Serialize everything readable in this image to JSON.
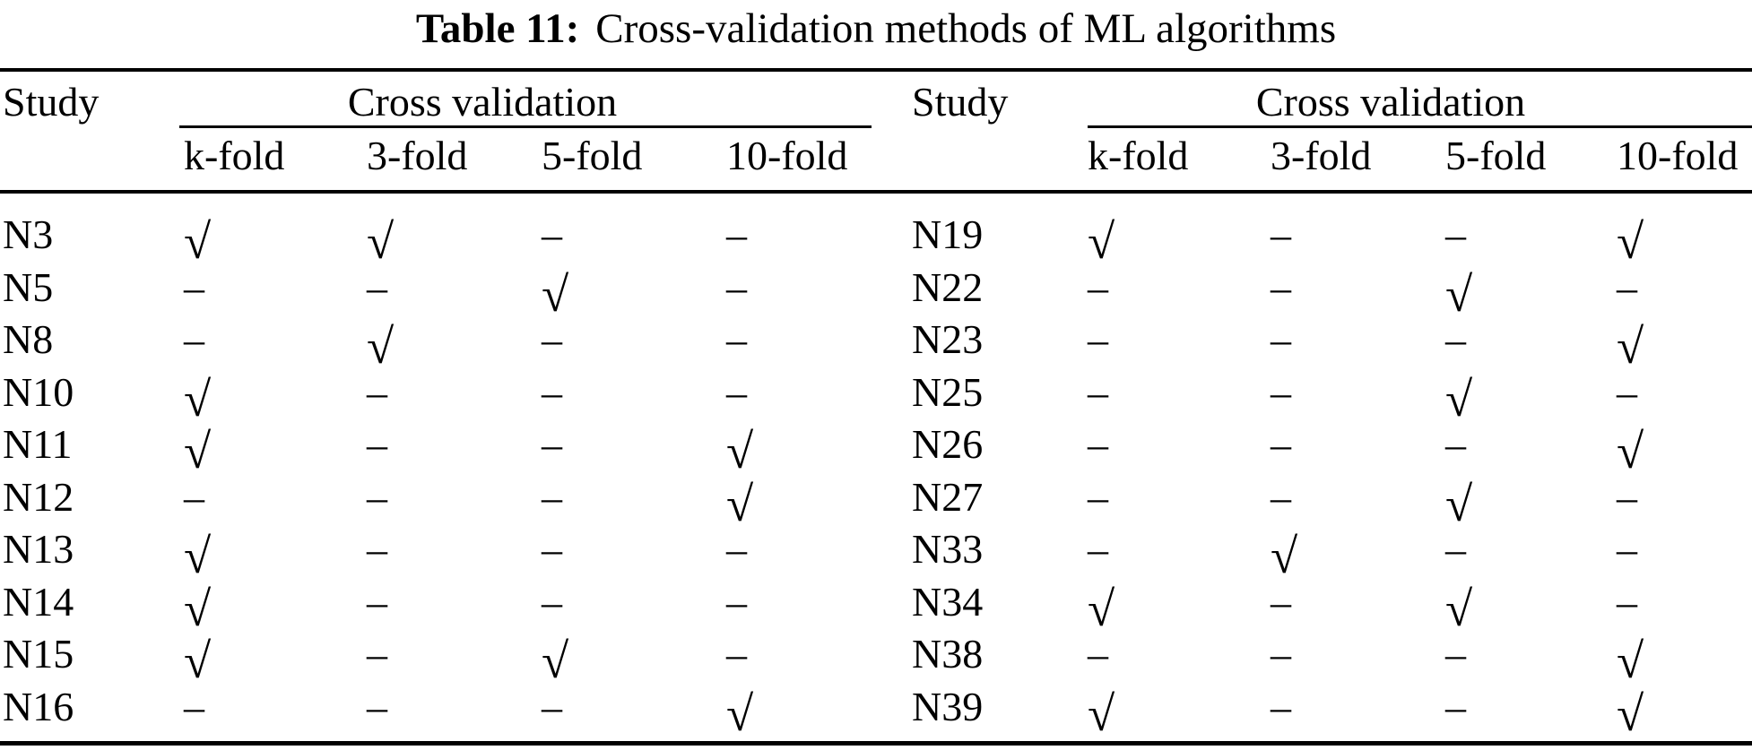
{
  "caption": {
    "label": "Table 11:",
    "text": "Cross-validation methods of ML algorithms"
  },
  "symbols": {
    "check": "√",
    "dash": "–"
  },
  "colors": {
    "text": "#000000",
    "background": "#ffffff",
    "rule": "#000000"
  },
  "tables": [
    {
      "study_header": "Study",
      "group_header": "Cross validation",
      "columns": [
        "k-fold",
        "3-fold",
        "5-fold",
        "10-fold"
      ],
      "rows": [
        {
          "study": "N3",
          "cells": [
            true,
            true,
            false,
            false
          ]
        },
        {
          "study": "N5",
          "cells": [
            false,
            false,
            true,
            false
          ]
        },
        {
          "study": "N8",
          "cells": [
            false,
            true,
            false,
            false
          ]
        },
        {
          "study": "N10",
          "cells": [
            true,
            false,
            false,
            false
          ]
        },
        {
          "study": "N11",
          "cells": [
            true,
            false,
            false,
            true
          ]
        },
        {
          "study": "N12",
          "cells": [
            false,
            false,
            false,
            true
          ]
        },
        {
          "study": "N13",
          "cells": [
            true,
            false,
            false,
            false
          ]
        },
        {
          "study": "N14",
          "cells": [
            true,
            false,
            false,
            false
          ]
        },
        {
          "study": "N15",
          "cells": [
            true,
            false,
            true,
            false
          ]
        },
        {
          "study": "N16",
          "cells": [
            false,
            false,
            false,
            true
          ]
        }
      ]
    },
    {
      "study_header": "Study",
      "group_header": "Cross validation",
      "columns": [
        "k-fold",
        "3-fold",
        "5-fold",
        "10-fold"
      ],
      "rows": [
        {
          "study": "N19",
          "cells": [
            true,
            false,
            false,
            true
          ]
        },
        {
          "study": "N22",
          "cells": [
            false,
            false,
            true,
            false
          ]
        },
        {
          "study": "N23",
          "cells": [
            false,
            false,
            false,
            true
          ]
        },
        {
          "study": "N25",
          "cells": [
            false,
            false,
            true,
            false
          ]
        },
        {
          "study": "N26",
          "cells": [
            false,
            false,
            false,
            true
          ]
        },
        {
          "study": "N27",
          "cells": [
            false,
            false,
            true,
            false
          ]
        },
        {
          "study": "N33",
          "cells": [
            false,
            true,
            false,
            false
          ]
        },
        {
          "study": "N34",
          "cells": [
            true,
            false,
            true,
            false
          ]
        },
        {
          "study": "N38",
          "cells": [
            false,
            false,
            false,
            true
          ]
        },
        {
          "study": "N39",
          "cells": [
            true,
            false,
            false,
            true
          ]
        }
      ]
    }
  ]
}
